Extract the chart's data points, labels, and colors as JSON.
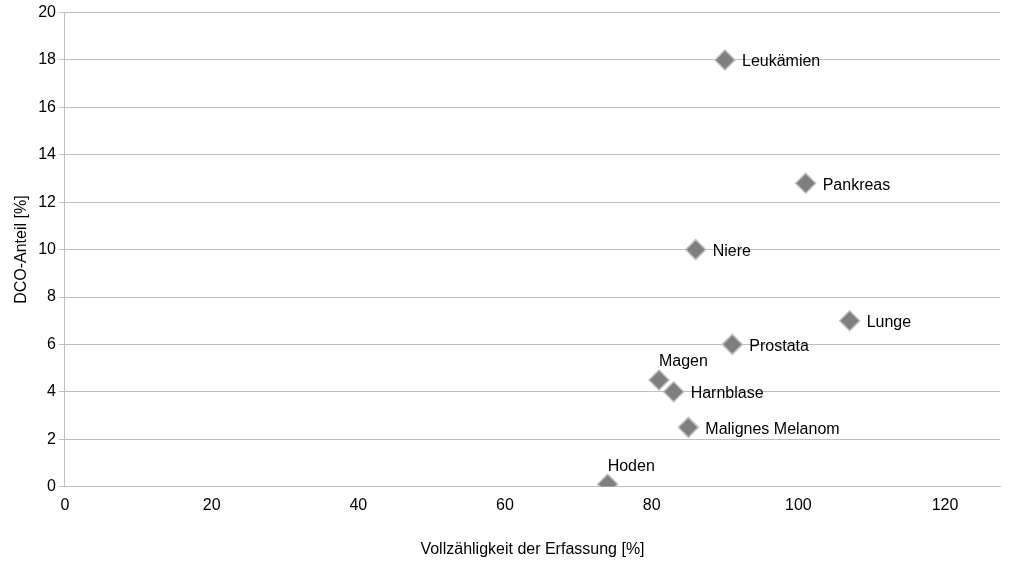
{
  "chart_data": {
    "type": "scatter",
    "xlabel": "Vollzähligkeit der Erfassung [%]",
    "ylabel": "DCO-Anteil [%]",
    "x": [
      90,
      101,
      86,
      107,
      91,
      81,
      83,
      85,
      74
    ],
    "series": [
      {
        "color": "#7f7f7f",
        "values": [
          18,
          12.8,
          10,
          7,
          6,
          4.5,
          4,
          2.5,
          0.1
        ]
      }
    ],
    "xlim": [
      0,
      127.5
    ],
    "xticks": [
      0,
      20,
      40,
      60,
      80,
      100,
      120
    ],
    "ylim": [
      0,
      20
    ],
    "yticks": [
      0,
      2,
      4,
      6,
      8,
      10,
      12,
      14,
      16,
      18,
      20
    ],
    "grid": "y",
    "legend": false,
    "marker": "diamond",
    "annotations": [
      {
        "text": "Leukämien",
        "x": 90,
        "y": 18
      },
      {
        "text": "Pankreas",
        "x": 101,
        "y": 12.8
      },
      {
        "text": "Niere",
        "x": 86,
        "y": 10
      },
      {
        "text": "Lunge",
        "x": 107,
        "y": 7
      },
      {
        "text": "Prostata",
        "x": 91,
        "y": 6
      },
      {
        "text": "Magen",
        "x": 81,
        "y": 4.5
      },
      {
        "text": "Harnblase",
        "x": 83,
        "y": 4
      },
      {
        "text": "Malignes Melanom",
        "x": 85,
        "y": 2.5
      },
      {
        "text": "Hoden",
        "x": 74,
        "y": 0.1
      }
    ]
  }
}
